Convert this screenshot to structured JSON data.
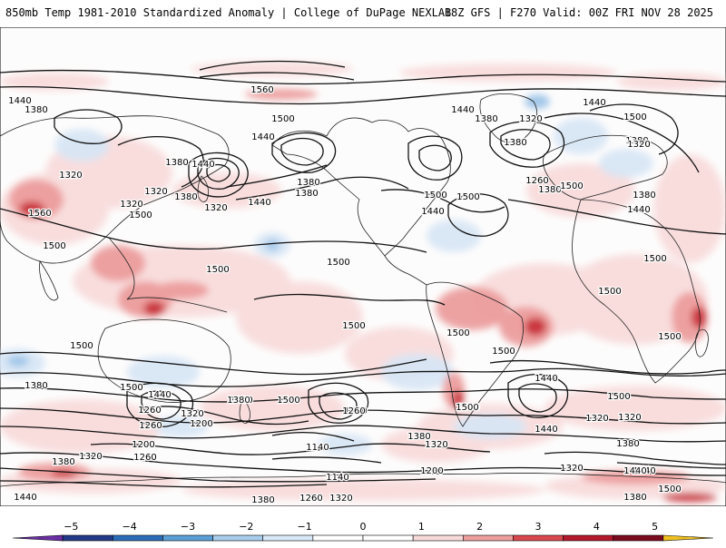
{
  "header": {
    "title_left": "850mb Temp 1981-2010 Standardized Anomaly | College of DuPage NEXLAB",
    "title_right": "18Z GFS | F270 Valid: 00Z FRI NOV 28 2025"
  },
  "colors": {
    "anomaly_scale": [
      "#6b2fa6",
      "#233a86",
      "#2b6cb6",
      "#5a9fd6",
      "#a9cdec",
      "#d9e8f6",
      "#ffffff",
      "#ffffff",
      "#f8dada",
      "#ef9f9f",
      "#d9484f",
      "#b3182b",
      "#7a0a1e",
      "#f0c020"
    ]
  },
  "colorbar": {
    "labels": [
      {
        "value": -5,
        "text": "−5"
      },
      {
        "value": -4,
        "text": "−4"
      },
      {
        "value": -3,
        "text": "−3"
      },
      {
        "value": -2,
        "text": "−2"
      },
      {
        "value": -1,
        "text": "−1"
      },
      {
        "value": 0,
        "text": "0"
      },
      {
        "value": 1,
        "text": "1"
      },
      {
        "value": 2,
        "text": "2"
      },
      {
        "value": 3,
        "text": "3"
      },
      {
        "value": 4,
        "text": "4"
      },
      {
        "value": 5,
        "text": "5"
      }
    ]
  },
  "contour_labels": [
    "1560",
    "1440",
    "1380",
    "1500",
    "1440",
    "1440",
    "1380",
    "1320",
    "1500",
    "1440",
    "1380",
    "1380",
    "1320",
    "1380",
    "1320",
    "1260",
    "1380",
    "1500",
    "1560",
    "1500",
    "1440",
    "1380",
    "1320",
    "1500",
    "1500",
    "1440",
    "1500",
    "1380",
    "1320",
    "1320",
    "1380",
    "1440",
    "1380",
    "1500",
    "1440",
    "1500",
    "1500",
    "1500",
    "1500",
    "1500",
    "1500",
    "1500",
    "1500",
    "1500",
    "1380",
    "1500",
    "1440",
    "1260",
    "1320",
    "1380",
    "1200",
    "1260",
    "1200",
    "1320",
    "1380",
    "1260",
    "1440",
    "1260",
    "1140",
    "1380",
    "1320",
    "1440",
    "1380",
    "1320",
    "1500",
    "1260",
    "1440",
    "1320",
    "1380",
    "1260",
    "1200",
    "1140",
    "1260",
    "1320",
    "1380",
    "1440",
    "1500",
    "1320",
    "1380",
    "1440",
    "1500",
    "1440",
    "1500"
  ]
}
